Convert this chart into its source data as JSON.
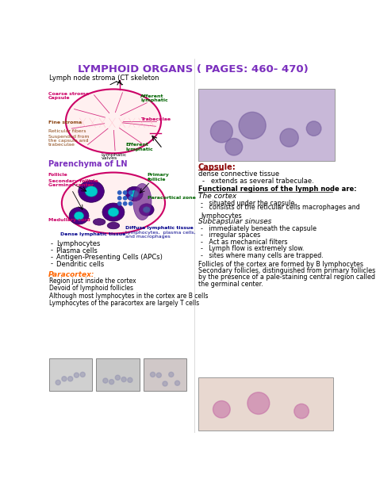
{
  "title": "LYMPHOID ORGANS ( PAGES: 460- 470)",
  "title_color": "#7B2FBE",
  "bg_color": "#FFFFFF",
  "left_panel": {
    "stroma_header": "Lymph node stroma (CT skeleton",
    "parenchyma_header": "Parenchyma of LN",
    "paracortex_header": "Paracortex:",
    "bullet_items": [
      "Lymphocytes",
      "Plasma cells",
      "Antigen-Presenting Cells (APCs)",
      "Dendritic cells"
    ],
    "paracortex_items": [
      "Region just inside the cortex",
      "Devoid of lymphoid follicles",
      "Although most lymphocytes in the cortex are B cells",
      "Lymphocytes of the paracortex are largely T cells"
    ]
  },
  "right_panel": {
    "capsule_label": "Capsule:",
    "capsule_color": "#8B0000",
    "dense_text": "dense connective tissue",
    "extends_text": "extends as several trabeculae.",
    "functional_header": "Functional regions of the lymph node are:",
    "cortex_header": "The cortex",
    "cortex_items": [
      "situated under the capsule.",
      "consists of the reticular cells macrophages and lymphocytes"
    ],
    "subcapsular_header": "Subcapsular sinuses",
    "subcapsular_items": [
      "immediately beneath the capsule",
      "irregular spaces",
      "Act as mechanical filters",
      "Lymph flow is extremely slow.",
      "sites where many cells are trapped."
    ],
    "follicles_text": "Follicles of the cortex are formed by B lymphocytes\nSecondary follicles, distinguished from primary follicles\nby the presence of a pale-staining central region called\nthe germinal center."
  }
}
